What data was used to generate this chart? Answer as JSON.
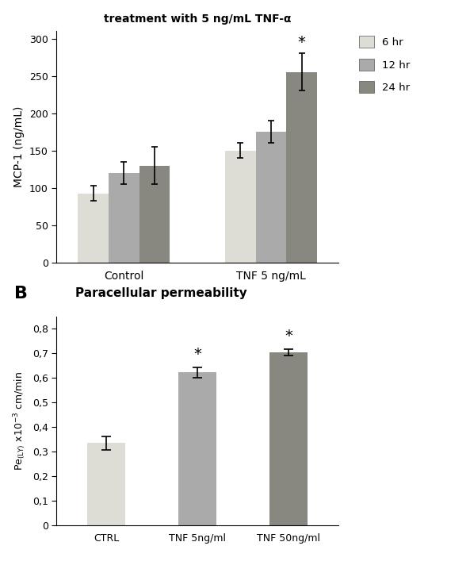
{
  "panel_A_title": "treatment with 5 ng/mL TNF-α",
  "panel_B_label": "B",
  "panel_B_title": "Paracellular permeability",
  "groupA_categories": [
    "Control",
    "TNF 5 ng/mL"
  ],
  "groupA_times": [
    "6 hr",
    "12 hr",
    "24 hr"
  ],
  "groupA_values": [
    [
      93,
      120,
      130
    ],
    [
      150,
      175,
      255
    ]
  ],
  "groupA_errors": [
    [
      10,
      15,
      25
    ],
    [
      10,
      15,
      25
    ]
  ],
  "groupA_colors": [
    "#ddddd5",
    "#aaaaaa",
    "#888880"
  ],
  "groupA_ylabel": "MCP-1 (ng/mL)",
  "groupA_ylim": [
    0,
    310
  ],
  "groupA_yticks": [
    0,
    50,
    100,
    150,
    200,
    250,
    300
  ],
  "groupB_categories": [
    "CTRL",
    "TNF 5ng/ml",
    "TNF 50ng/ml"
  ],
  "groupB_values": [
    0.335,
    0.622,
    0.703
  ],
  "groupB_errors": [
    0.028,
    0.022,
    0.013
  ],
  "groupB_colors": [
    "#ddddd5",
    "#aaaaaa",
    "#888880"
  ],
  "groupB_ylim": [
    0,
    0.85
  ],
  "groupB_yticks": [
    0,
    0.1,
    0.2,
    0.3,
    0.4,
    0.5,
    0.6,
    0.7,
    0.8
  ],
  "groupB_significant": [
    false,
    true,
    true
  ],
  "background_color": "#ffffff"
}
